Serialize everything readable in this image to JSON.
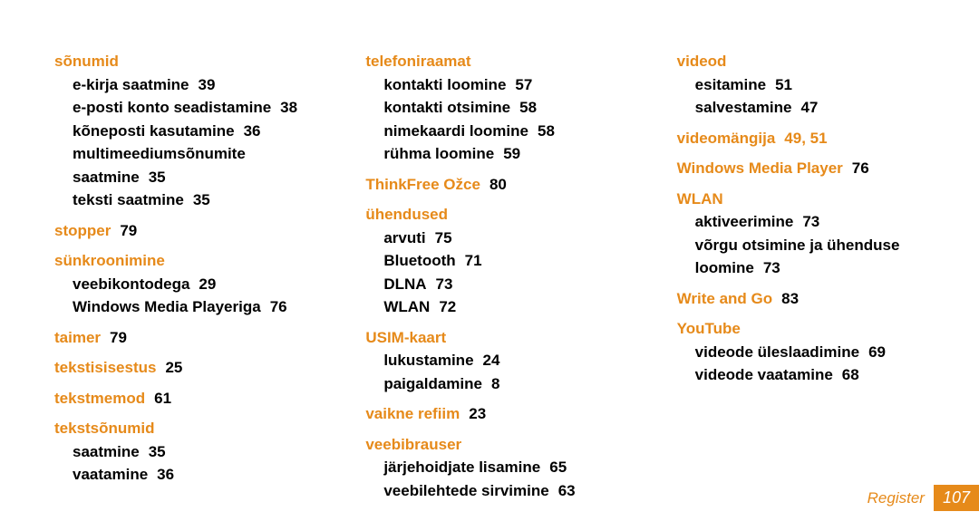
{
  "columns": [
    {
      "groups": [
        {
          "heading": "sõnumid",
          "subs": [
            {
              "label": "e-kirja saatmine",
              "page": "39"
            },
            {
              "label": "e-posti konto seadistamine",
              "page": "38"
            },
            {
              "label": "kõneposti kasutamine",
              "page": "36"
            },
            {
              "label": "multimeediumsõnumite saatmine",
              "page": "35",
              "wrap": true
            },
            {
              "label": "teksti saatmine",
              "page": "35"
            }
          ]
        },
        {
          "heading": "stopper",
          "page": "79"
        },
        {
          "heading": "sünkroonimine",
          "subs": [
            {
              "label": "veebikontodega",
              "page": "29"
            },
            {
              "label": "Windows Media Playeriga",
              "page": "76"
            }
          ]
        },
        {
          "heading": "taimer",
          "page": "79"
        },
        {
          "heading": "tekstisisestus",
          "page": "25"
        },
        {
          "heading": "tekstmemod",
          "page": "61"
        },
        {
          "heading": "tekstsõnumid",
          "subs": [
            {
              "label": "saatmine",
              "page": "35"
            },
            {
              "label": "vaatamine",
              "page": "36"
            }
          ]
        }
      ]
    },
    {
      "groups": [
        {
          "heading": "telefoniraamat",
          "subs": [
            {
              "label": "kontakti loomine",
              "page": "57"
            },
            {
              "label": "kontakti otsimine",
              "page": "58"
            },
            {
              "label": "nimekaardi loomine",
              "page": "58"
            },
            {
              "label": "rühma loomine",
              "page": "59"
            }
          ]
        },
        {
          "heading": "ThinkFree Ožce",
          "page": "80"
        },
        {
          "heading": "ühendused",
          "subs": [
            {
              "label": "arvuti",
              "page": "75"
            },
            {
              "label": "Bluetooth",
              "page": "71"
            },
            {
              "label": "DLNA",
              "page": "73"
            },
            {
              "label": "WLAN",
              "page": "72"
            }
          ]
        },
        {
          "heading": "USIM-kaart",
          "subs": [
            {
              "label": "lukustamine",
              "page": "24"
            },
            {
              "label": "paigaldamine",
              "page": "8"
            }
          ]
        },
        {
          "heading": "vaikne refiim",
          "page": "23"
        },
        {
          "heading": "veebibrauser",
          "subs": [
            {
              "label": "järjehoidjate lisamine",
              "page": "65"
            },
            {
              "label": "veebilehtede sirvimine",
              "page": "63"
            }
          ]
        }
      ]
    },
    {
      "groups": [
        {
          "heading": "videod",
          "subs": [
            {
              "label": "esitamine",
              "page": "51"
            },
            {
              "label": "salvestamine",
              "page": "47"
            }
          ]
        },
        {
          "heading": "videomängija",
          "page_orange": "49, 51"
        },
        {
          "heading": "Windows Media Player",
          "page": "76"
        },
        {
          "heading": "WLAN",
          "subs": [
            {
              "label": "aktiveerimine",
              "page": "73"
            },
            {
              "label": "võrgu otsimine ja ühenduse loomine",
              "page": "73",
              "wrap": true
            }
          ]
        },
        {
          "heading": "Write and Go",
          "page": "83"
        },
        {
          "heading": "YouTube",
          "subs": [
            {
              "label": "videode üleslaadimine",
              "page": "69"
            },
            {
              "label": "videode vaatamine",
              "page": "68"
            }
          ]
        }
      ]
    }
  ],
  "footer": {
    "label": "Register",
    "page": "107"
  }
}
